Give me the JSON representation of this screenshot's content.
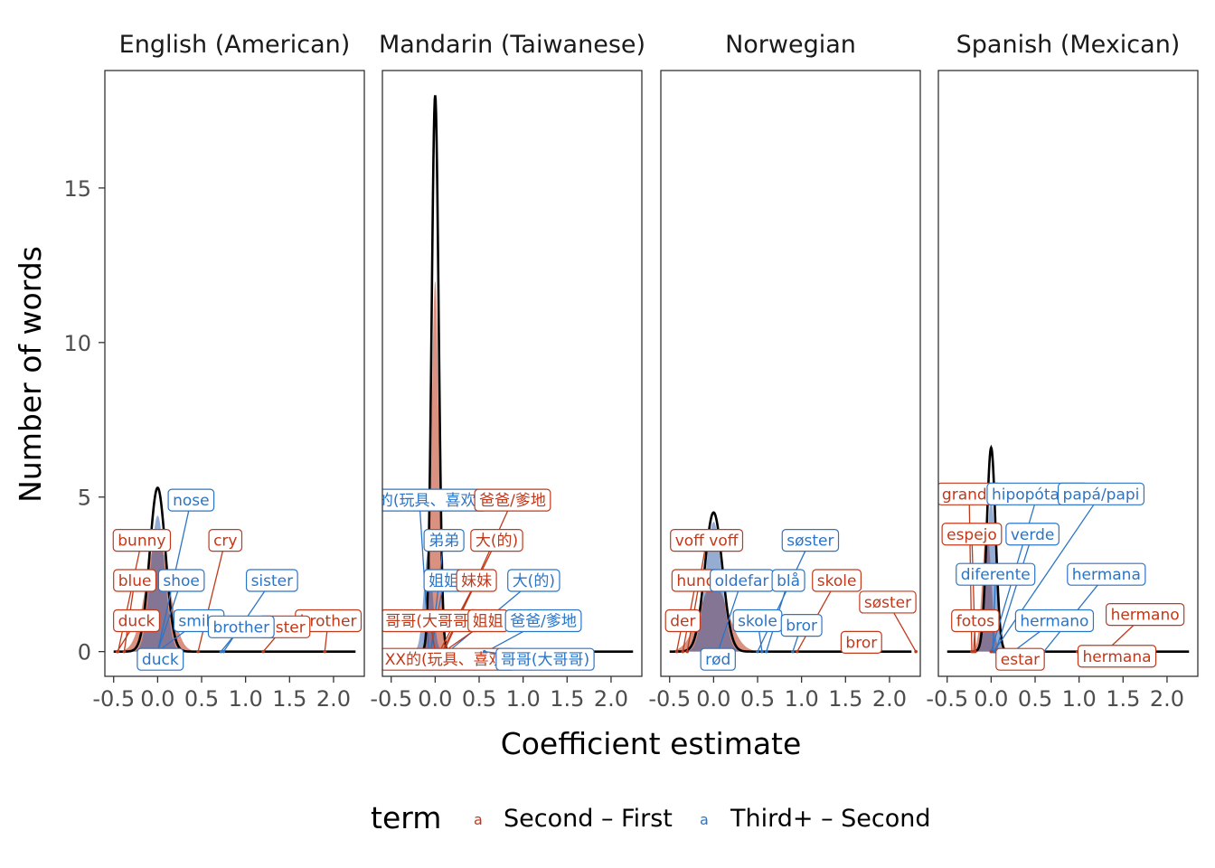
{
  "chart_data": {
    "type": "area",
    "xlabel": "Coefficient estimate",
    "ylabel": "Number of words",
    "xlim": [
      -0.6,
      2.35
    ],
    "ylim": [
      -0.8,
      18.8
    ],
    "x_ticks": [
      -0.5,
      0.0,
      0.5,
      1.0,
      1.5,
      2.0
    ],
    "x_tick_labels": [
      "-0.5",
      "0.0",
      "0.5",
      "1.0",
      "1.5",
      "2.0"
    ],
    "y_ticks": [
      0,
      5,
      10,
      15
    ],
    "y_tick_labels": [
      "0",
      "5",
      "10",
      "15"
    ],
    "grid": false,
    "legend": {
      "position": "bottom",
      "title": "term",
      "key_glyph": "a",
      "items": [
        {
          "name": "Second – First",
          "color": "#c0391b",
          "fill": "#d98b78"
        },
        {
          "name": "Third+ – Second",
          "color": "#2b74c6",
          "fill": "#8fb3de"
        }
      ]
    },
    "colors": {
      "second_first": "#c0391b",
      "third_second": "#2b74c6",
      "overlap": "#7a78a0",
      "total": "#000000"
    },
    "panels": [
      {
        "title": "English (American)",
        "second_first": {
          "center": 0.0,
          "sd": 0.13,
          "peak": 3.7
        },
        "third_second": {
          "center": 0.0,
          "sd": 0.08,
          "peak": 4.4
        },
        "total": {
          "center": 0.0,
          "sd": 0.09,
          "peak": 5.3
        },
        "labels": [
          {
            "text": "nose",
            "term": "third_second",
            "x": 0.38,
            "y": 4.9,
            "px": 0.0,
            "py": 0.0
          },
          {
            "text": "bunny",
            "term": "second_first",
            "x": -0.18,
            "y": 3.6,
            "px": -0.45,
            "py": 0.0
          },
          {
            "text": "cry",
            "term": "second_first",
            "x": 0.77,
            "y": 3.6,
            "px": 0.46,
            "py": 0.0
          },
          {
            "text": "blue",
            "term": "second_first",
            "x": -0.26,
            "y": 2.3,
            "px": -0.38,
            "py": 0.0
          },
          {
            "text": "shoe",
            "term": "third_second",
            "x": 0.27,
            "y": 2.3,
            "px": 0.0,
            "py": 0.0
          },
          {
            "text": "sister",
            "term": "third_second",
            "x": 1.3,
            "y": 2.3,
            "px": 0.75,
            "py": 0.0
          },
          {
            "text": "duck",
            "term": "second_first",
            "x": -0.24,
            "y": 1.0,
            "px": -0.46,
            "py": 0.0
          },
          {
            "text": "smile",
            "term": "third_second",
            "x": 0.47,
            "y": 1.0,
            "px": 0.0,
            "py": 0.0
          },
          {
            "text": "brother",
            "term": "second_first",
            "x": 1.94,
            "y": 1.0,
            "px": 1.9,
            "py": 0.0
          },
          {
            "text": "sister",
            "term": "second_first",
            "x": 1.44,
            "y": 0.8,
            "px": 1.2,
            "py": 0.0
          },
          {
            "text": "brother",
            "term": "third_second",
            "x": 0.95,
            "y": 0.8,
            "px": 0.72,
            "py": 0.0
          },
          {
            "text": "duck",
            "term": "third_second",
            "x": 0.03,
            "y": -0.25,
            "px": -0.18,
            "py": 0.0
          }
        ]
      },
      {
        "title": "Mandarin (Taiwanese)",
        "second_first": {
          "center": 0.0,
          "sd": 0.04,
          "peak": 12.0
        },
        "third_second": {
          "center": -0.08,
          "sd": 0.05,
          "peak": 3.2
        },
        "total": {
          "center": 0.0,
          "sd": 0.04,
          "peak": 18.0
        },
        "labels": [
          {
            "text": "XX的(玩具、喜欢)",
            "term": "third_second",
            "x": -0.18,
            "y": 4.9,
            "px": -0.07,
            "py": 0.0
          },
          {
            "text": "爸爸/爹地",
            "term": "second_first",
            "x": 0.88,
            "y": 4.9,
            "px": 0.1,
            "py": 0.0
          },
          {
            "text": "弟弟",
            "term": "third_second",
            "x": 0.1,
            "y": 3.6,
            "px": -0.05,
            "py": 0.0
          },
          {
            "text": "大(的)",
            "term": "second_first",
            "x": 0.7,
            "y": 3.6,
            "px": 0.08,
            "py": 0.0
          },
          {
            "text": "姐姐",
            "term": "third_second",
            "x": 0.1,
            "y": 2.3,
            "px": -0.05,
            "py": 0.0
          },
          {
            "text": "妹妹",
            "term": "second_first",
            "x": 0.47,
            "y": 2.3,
            "px": 0.05,
            "py": 0.0
          },
          {
            "text": "大(的)",
            "term": "third_second",
            "x": 1.12,
            "y": 2.3,
            "px": 0.15,
            "py": 0.0
          },
          {
            "text": "哥哥(大哥哥)",
            "term": "second_first",
            "x": -0.06,
            "y": 1.0,
            "px": 0.0,
            "py": 0.0
          },
          {
            "text": "姐姐",
            "term": "second_first",
            "x": 0.6,
            "y": 1.0,
            "px": 0.1,
            "py": 0.0
          },
          {
            "text": "爸爸/爹地",
            "term": "third_second",
            "x": 1.23,
            "y": 1.0,
            "px": 0.58,
            "py": 0.0
          },
          {
            "text": "XX的(玩具、喜欢)",
            "term": "second_first",
            "x": 0.14,
            "y": -0.25,
            "px": 0.0,
            "py": 0.0
          },
          {
            "text": "哥哥(大哥哥)",
            "term": "third_second",
            "x": 1.25,
            "y": -0.25,
            "px": 0.56,
            "py": 0.0
          }
        ]
      },
      {
        "title": "Norwegian",
        "second_first": {
          "center": 0.0,
          "sd": 0.16,
          "peak": 2.2
        },
        "third_second": {
          "center": 0.0,
          "sd": 0.09,
          "peak": 4.2
        },
        "total": {
          "center": 0.0,
          "sd": 0.1,
          "peak": 4.5
        },
        "labels": [
          {
            "text": "voff voff",
            "term": "second_first",
            "x": -0.08,
            "y": 3.6,
            "px": -0.3,
            "py": 0.0
          },
          {
            "text": "søster",
            "term": "third_second",
            "x": 1.1,
            "y": 3.6,
            "px": 0.5,
            "py": 0.0
          },
          {
            "text": "hund",
            "term": "second_first",
            "x": -0.2,
            "y": 2.3,
            "px": -0.35,
            "py": 0.0
          },
          {
            "text": "oldefar",
            "term": "third_second",
            "x": 0.32,
            "y": 2.3,
            "px": 0.05,
            "py": 0.0
          },
          {
            "text": "blå",
            "term": "third_second",
            "x": 0.85,
            "y": 2.3,
            "px": 0.6,
            "py": 0.0
          },
          {
            "text": "skole",
            "term": "second_first",
            "x": 1.4,
            "y": 2.3,
            "px": 0.95,
            "py": 0.0
          },
          {
            "text": "søster",
            "term": "second_first",
            "x": 1.98,
            "y": 1.6,
            "px": 2.3,
            "py": 0.0
          },
          {
            "text": "der",
            "term": "second_first",
            "x": -0.35,
            "y": 1.0,
            "px": -0.42,
            "py": 0.0
          },
          {
            "text": "skole",
            "term": "third_second",
            "x": 0.5,
            "y": 1.0,
            "px": 0.55,
            "py": 0.0
          },
          {
            "text": "bror",
            "term": "third_second",
            "x": 1.0,
            "y": 0.85,
            "px": 0.9,
            "py": 0.0
          },
          {
            "text": "bror",
            "term": "second_first",
            "x": 1.68,
            "y": 0.3,
            "px": 1.7,
            "py": 0.0
          },
          {
            "text": "rød",
            "term": "third_second",
            "x": 0.05,
            "y": -0.25,
            "px": -0.08,
            "py": 0.0
          }
        ]
      },
      {
        "title": "Spanish (Mexican)",
        "second_first": {
          "center": -0.05,
          "sd": 0.05,
          "peak": 4.0
        },
        "third_second": {
          "center": 0.0,
          "sd": 0.05,
          "peak": 5.0
        },
        "total": {
          "center": 0.0,
          "sd": 0.05,
          "peak": 6.6
        },
        "labels": [
          {
            "text": "grande",
            "term": "second_first",
            "x": -0.25,
            "y": 5.1,
            "px": -0.22,
            "py": 0.0
          },
          {
            "text": "hipopótamo",
            "term": "third_second",
            "x": 0.53,
            "y": 5.1,
            "px": 0.0,
            "py": 0.0
          },
          {
            "text": "papá/papi",
            "term": "third_second",
            "x": 1.25,
            "y": 5.1,
            "px": 0.03,
            "py": 0.0
          },
          {
            "text": "espejo",
            "term": "second_first",
            "x": -0.22,
            "y": 3.8,
            "px": -0.18,
            "py": 0.0
          },
          {
            "text": "verde",
            "term": "third_second",
            "x": 0.47,
            "y": 3.8,
            "px": 0.05,
            "py": 0.0
          },
          {
            "text": "diferente",
            "term": "third_second",
            "x": 0.05,
            "y": 2.5,
            "px": 0.02,
            "py": 0.0
          },
          {
            "text": "hermana",
            "term": "third_second",
            "x": 1.31,
            "y": 2.5,
            "px": 0.6,
            "py": 0.0
          },
          {
            "text": "fotos",
            "term": "second_first",
            "x": -0.18,
            "y": 1.0,
            "px": -0.2,
            "py": 0.0
          },
          {
            "text": "hermano",
            "term": "third_second",
            "x": 0.72,
            "y": 1.0,
            "px": 0.25,
            "py": 0.0
          },
          {
            "text": "hermano",
            "term": "second_first",
            "x": 1.75,
            "y": 1.2,
            "px": 1.3,
            "py": 0.0
          },
          {
            "text": "hermana",
            "term": "second_first",
            "x": 1.43,
            "y": -0.15,
            "px": 0.98,
            "py": 0.0
          },
          {
            "text": "estar",
            "term": "second_first",
            "x": 0.33,
            "y": -0.25,
            "px": 0.0,
            "py": 0.0
          }
        ]
      }
    ]
  }
}
